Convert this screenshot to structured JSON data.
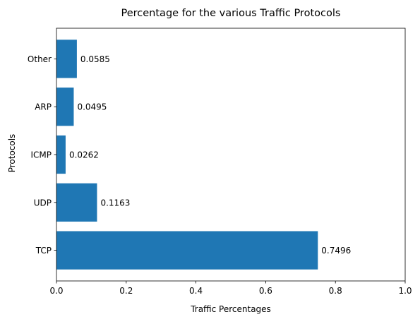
{
  "chart_data": {
    "type": "bar",
    "orientation": "horizontal",
    "title": "Percentage for the various Traffic Protocols",
    "xlabel": "Traffic Percentages",
    "ylabel": "Protocols",
    "categories": [
      "TCP",
      "UDP",
      "ICMP",
      "ARP",
      "Other"
    ],
    "values": [
      0.7496,
      0.1163,
      0.0262,
      0.0495,
      0.0585
    ],
    "value_labels": [
      "0.7496",
      "0.1163",
      "0.0262",
      "0.0495",
      "0.0585"
    ],
    "xlim": [
      0,
      1
    ],
    "xticks": [
      0,
      0.2,
      0.4,
      0.6,
      0.8,
      1.0
    ],
    "xtick_labels": [
      "0.0",
      "0.2",
      "0.4",
      "0.6",
      "0.8",
      "1.0"
    ],
    "grid": false,
    "bar_color": "#1f77b4"
  }
}
